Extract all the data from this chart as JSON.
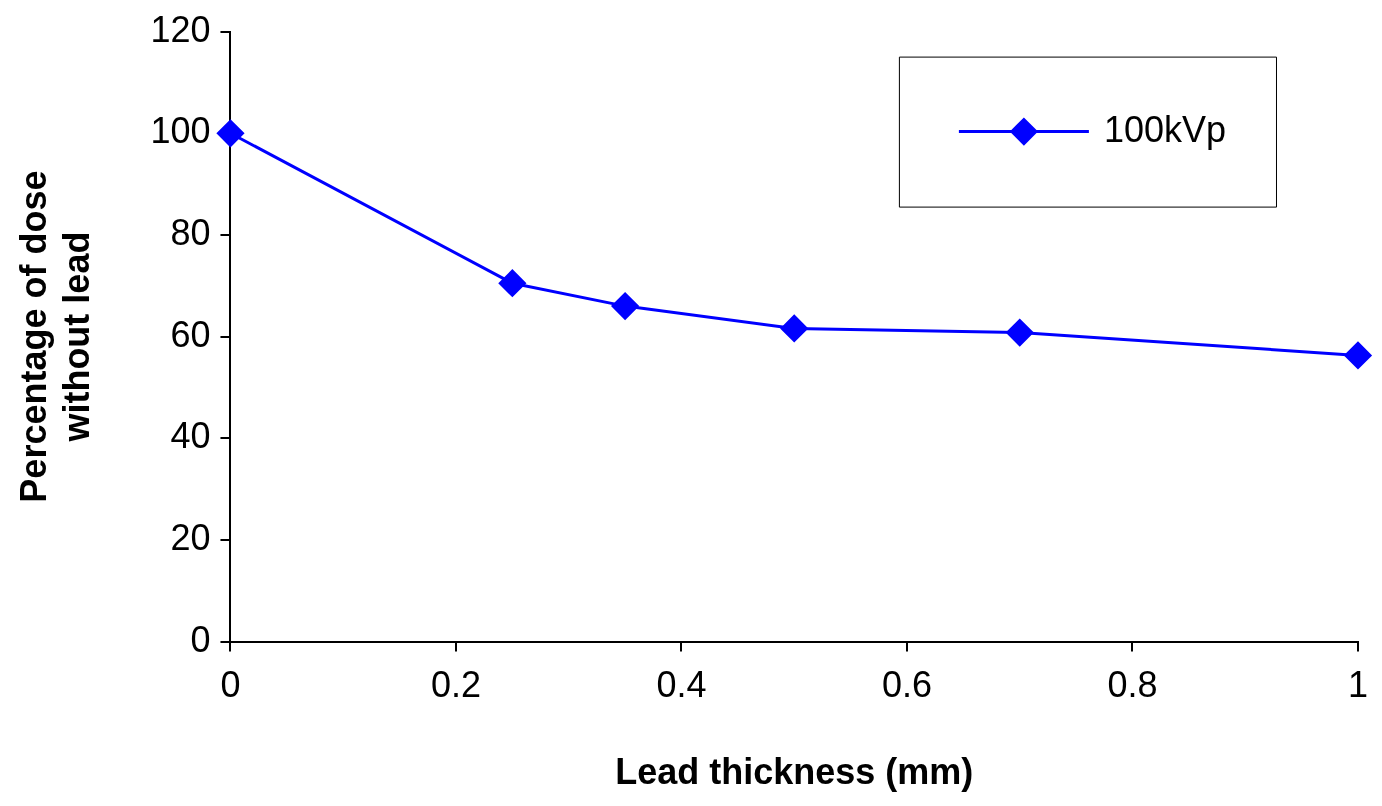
{
  "chart_data": {
    "type": "line",
    "xlabel": "Lead thickness (mm)",
    "ylabel": "Percentage of dose without lead",
    "x": [
      0,
      0.25,
      0.35,
      0.5,
      0.7,
      1
    ],
    "series": [
      {
        "name": "100kVp",
        "color": "#0000ff",
        "values": [
          100,
          70.5,
          66,
          61.6,
          60.8,
          56.3
        ]
      }
    ],
    "xlim": [
      0,
      1
    ],
    "xticks": [
      0,
      0.2,
      0.4,
      0.6,
      0.8,
      1
    ],
    "ylim": [
      0,
      120
    ],
    "yticks": [
      0,
      20,
      40,
      60,
      80,
      100,
      120
    ],
    "grid": false,
    "legend": "top right",
    "marker": "diamond",
    "line_style": "solid"
  }
}
